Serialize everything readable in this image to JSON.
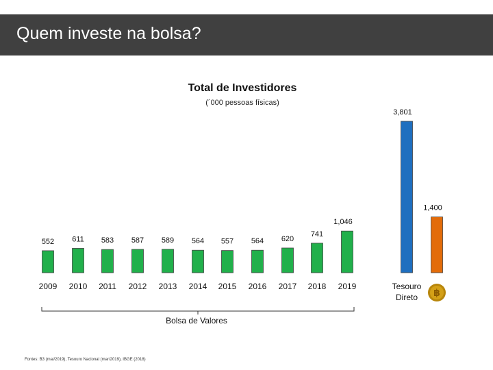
{
  "header": {
    "title": "Quem investe na bolsa?"
  },
  "chart_data": {
    "type": "bar",
    "title": "Total de Investidores",
    "subtitle": "(´000 pessoas físicas)",
    "categories": [
      "2009",
      "2010",
      "2011",
      "2012",
      "2013",
      "2014",
      "2015",
      "2016",
      "2017",
      "2018",
      "2019",
      "Tesouro Direto",
      ""
    ],
    "values": [
      552,
      611,
      583,
      587,
      589,
      564,
      557,
      564,
      620,
      741,
      1046,
      3801,
      1400
    ],
    "value_labels": [
      "552",
      "611",
      "583",
      "587",
      "589",
      "564",
      "557",
      "564",
      "620",
      "741",
      "1,046",
      "3,801",
      "1,400"
    ],
    "bar_colors": [
      "#21b04b",
      "#21b04b",
      "#21b04b",
      "#21b04b",
      "#21b04b",
      "#21b04b",
      "#21b04b",
      "#21b04b",
      "#21b04b",
      "#21b04b",
      "#21b04b",
      "#1f6fbf",
      "#e36c0a"
    ],
    "last_category_icon": "bitcoin-icon",
    "bracket_label": "Bolsa de Valores",
    "grid": false,
    "legend": "none"
  },
  "footer": {
    "sources": "Fontes: B3 (mai/2019), Tesouro Nacional (mar/2019), IBGE (2018)"
  }
}
